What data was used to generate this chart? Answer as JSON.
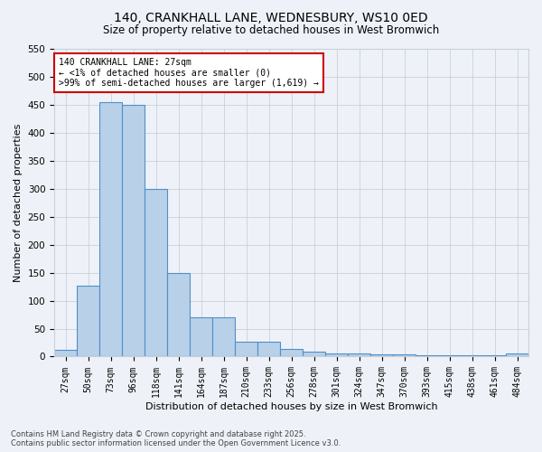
{
  "title_line1": "140, CRANKHALL LANE, WEDNESBURY, WS10 0ED",
  "title_line2": "Size of property relative to detached houses in West Bromwich",
  "xlabel": "Distribution of detached houses by size in West Bromwich",
  "ylabel": "Number of detached properties",
  "categories": [
    "27sqm",
    "50sqm",
    "73sqm",
    "96sqm",
    "118sqm",
    "141sqm",
    "164sqm",
    "187sqm",
    "210sqm",
    "233sqm",
    "256sqm",
    "278sqm",
    "301sqm",
    "324sqm",
    "347sqm",
    "370sqm",
    "393sqm",
    "415sqm",
    "438sqm",
    "461sqm",
    "484sqm"
  ],
  "values": [
    12,
    127,
    455,
    450,
    300,
    150,
    70,
    70,
    27,
    27,
    13,
    9,
    6,
    6,
    4,
    4,
    3,
    2,
    2,
    2,
    5
  ],
  "bar_color": "#b8d0e8",
  "bar_edge_color": "#5090c8",
  "ylim": [
    0,
    550
  ],
  "yticks": [
    0,
    50,
    100,
    150,
    200,
    250,
    300,
    350,
    400,
    450,
    500,
    550
  ],
  "annotation_title": "140 CRANKHALL LANE: 27sqm",
  "annotation_line2": "← <1% of detached houses are smaller (0)",
  "annotation_line3": ">99% of semi-detached houses are larger (1,619) →",
  "annotation_border_color": "#cc0000",
  "footer_line1": "Contains HM Land Registry data © Crown copyright and database right 2025.",
  "footer_line2": "Contains public sector information licensed under the Open Government Licence v3.0.",
  "bg_color": "#eef2f8",
  "grid_color": "#c8d0dc"
}
